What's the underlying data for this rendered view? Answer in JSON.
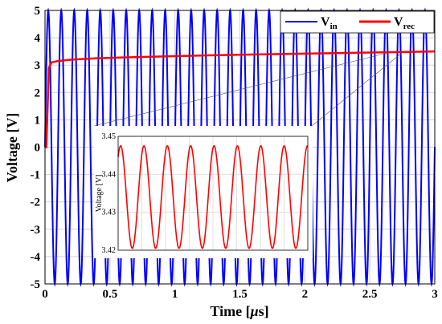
{
  "chart_data": {
    "type": "line",
    "xlabel_main": "Time [",
    "xlabel_mu": "μ",
    "xlabel_unit": "s]",
    "ylabel": "Voltage [V]",
    "xlim": [
      0,
      3
    ],
    "ylim": [
      -5,
      5
    ],
    "x_ticks": [
      "0",
      "0.5",
      "1",
      "1.5",
      "2",
      "2.5",
      "3"
    ],
    "y_ticks": [
      "-5",
      "-4",
      "-3",
      "-2",
      "-1",
      "0",
      "1",
      "2",
      "3",
      "4",
      "5"
    ],
    "grid": true,
    "legend_position": "top-right",
    "series": [
      {
        "name_main": "V",
        "name_sub": "in",
        "color": "#0000ff",
        "kind": "sine",
        "amplitude": 5,
        "frequency_per_us": 10
      },
      {
        "name_main": "V",
        "name_sub": "rec",
        "color": "#ff0000",
        "kind": "rectified",
        "points": [
          [
            0,
            0
          ],
          [
            0.01,
            0
          ],
          [
            0.03,
            2.9
          ],
          [
            0.05,
            3.1
          ],
          [
            0.1,
            3.15
          ],
          [
            0.2,
            3.2
          ],
          [
            0.4,
            3.25
          ],
          [
            0.6,
            3.28
          ],
          [
            1.0,
            3.33
          ],
          [
            1.5,
            3.38
          ],
          [
            2.0,
            3.42
          ],
          [
            2.5,
            3.46
          ],
          [
            3.0,
            3.5
          ]
        ]
      }
    ],
    "inset": {
      "ylabel": "Voltage [V]",
      "ylim": [
        3.42,
        3.45
      ],
      "y_ticks": [
        "3.42",
        "3.43",
        "3.44",
        "3.45"
      ],
      "grid": true,
      "series": {
        "color": "#ff0000",
        "mean": 3.434,
        "amplitude": 0.0135,
        "cycles": 8
      }
    }
  }
}
